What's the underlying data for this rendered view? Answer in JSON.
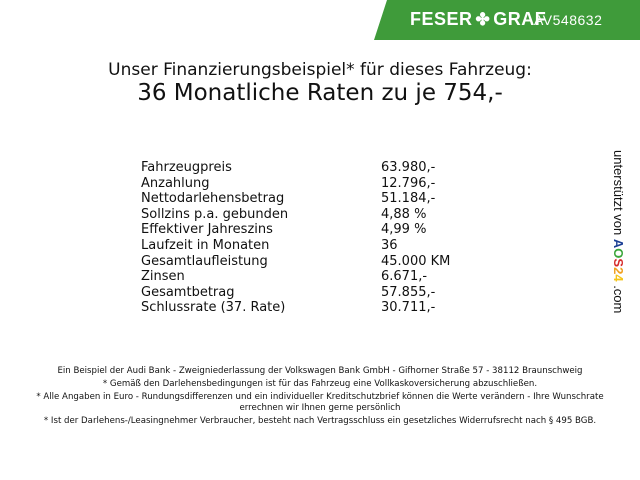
{
  "banner": {
    "brand_left": "FESER",
    "brand_right": "GRAF",
    "code": "AV548632",
    "color": "#3f9b3a",
    "icon": "clover-icon"
  },
  "header": {
    "subtitle": "Unser Finanzierungsbeispiel* für dieses Fahrzeug:",
    "title": "36 Monatliche Raten zu je 754,-"
  },
  "rows": [
    {
      "label": "Fahrzeugpreis",
      "value": "63.980,-"
    },
    {
      "label": "Anzahlung",
      "value": "12.796,-"
    },
    {
      "label": "Nettodarlehensbetrag",
      "value": "51.184,-"
    },
    {
      "label": "Sollzins p.a. gebunden",
      "value": "4,88 %"
    },
    {
      "label": "Effektiver Jahreszins",
      "value": "4,99 %"
    },
    {
      "label": "Laufzeit in Monaten",
      "value": "36"
    },
    {
      "label": "Gesamtlaufleistung",
      "value": "45.000 KM"
    },
    {
      "label": "Zinsen",
      "value": "6.671,-"
    },
    {
      "label": "Gesamtbetrag",
      "value": "57.855,-"
    },
    {
      "label": "Schlussrate (37. Rate)",
      "value": "30.711,-"
    }
  ],
  "side": {
    "text": "unterstützt von",
    "aos": [
      "A",
      "O",
      "S",
      "2",
      "4"
    ],
    "domain": ".com"
  },
  "footer": [
    "Ein Beispiel der Audi Bank - Zweigniederlassung der Volkswagen Bank GmbH - Gifhorner Straße 57 - 38112 Braunschweig",
    "* Gemäß den Darlehensbedingungen ist für das Fahrzeug eine Vollkaskoversicherung abzuschließen.",
    "* Alle Angaben in Euro - Rundungsdifferenzen und ein individueller Kreditschutzbrief können die Werte verändern - Ihre Wunschrate errechnen wir Ihnen gerne persönlich",
    "* Ist der Darlehens-/Leasingnehmer Verbraucher, besteht nach Vertragsschluss ein gesetzliches Widerrufsrecht nach § 495 BGB."
  ]
}
